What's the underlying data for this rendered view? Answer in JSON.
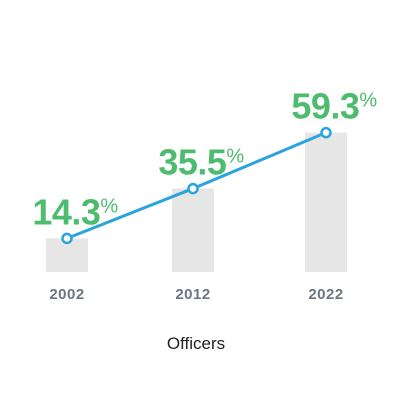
{
  "chart_data": {
    "type": "bar",
    "categories": [
      "2002",
      "2012",
      "2022"
    ],
    "values": [
      14.3,
      35.5,
      59.3
    ],
    "unit": "%",
    "xlabel": "Officers",
    "ylabel": "",
    "title": "",
    "ylim": [
      0,
      70
    ],
    "grid": false,
    "legend": "none",
    "overlay_line": true,
    "colors": {
      "bar": "#e6e6e6",
      "line": "#2aa4de",
      "marker_fill": "#ffffff",
      "label": "#4ebc6e",
      "tick": "#6b7683"
    }
  }
}
